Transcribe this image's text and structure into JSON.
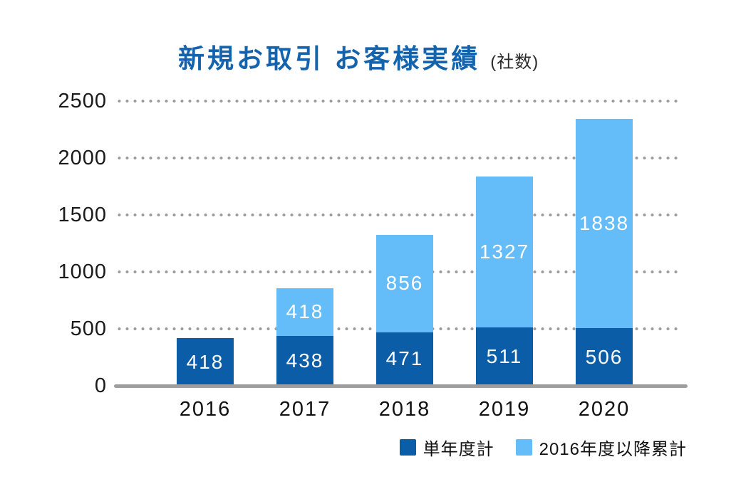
{
  "title": {
    "main": "新規お取引 お客様実績",
    "unit": "(社数)"
  },
  "colors": {
    "title": "#1463AC",
    "single_year_bar": "#0A5DA6",
    "cumulative_bar": "#64BCF8",
    "grid_dots": "#9B9B9B",
    "axis_line": "#9E9E9E",
    "bar_value_text": "#FFFFFF",
    "tick_text": "#1A1A1A"
  },
  "chart_data": {
    "type": "bar",
    "stacked": true,
    "title": "新規お取引 お客様実績 (社数)",
    "categories": [
      "2016",
      "2017",
      "2018",
      "2019",
      "2020"
    ],
    "series": [
      {
        "name": "単年度計",
        "color": "#0A5DA6",
        "values": [
          418,
          438,
          471,
          511,
          506
        ]
      },
      {
        "name": "2016年度以降累計",
        "color": "#64BCF8",
        "values": [
          0,
          418,
          856,
          1327,
          1838
        ]
      }
    ],
    "bar_totals": [
      418,
      856,
      1327,
      1838,
      2344
    ],
    "ylim": [
      0,
      2500
    ],
    "yticks": [
      0,
      500,
      1000,
      1500,
      2000,
      2500
    ],
    "grid": "horizontal-dotted",
    "legend_position": "bottom-right"
  }
}
